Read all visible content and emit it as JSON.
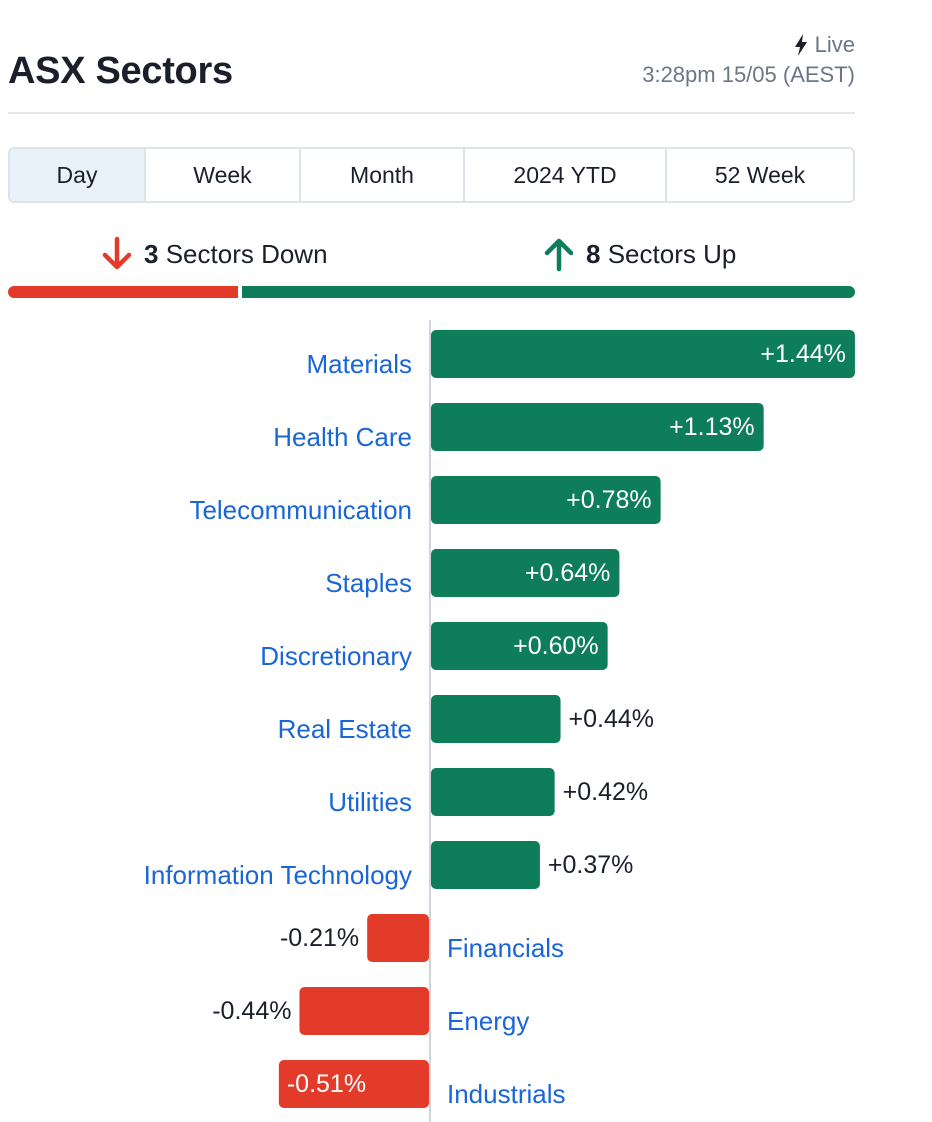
{
  "header": {
    "title": "ASX Sectors",
    "live_label": "Live",
    "timestamp": "3:28pm 15/05 (AEST)"
  },
  "tabs": [
    {
      "label": "Day",
      "active": true
    },
    {
      "label": "Week",
      "active": false
    },
    {
      "label": "Month",
      "active": false
    },
    {
      "label": "2024 YTD",
      "active": false
    },
    {
      "label": "52 Week",
      "active": false
    }
  ],
  "summary": {
    "down_count": "3",
    "down_label": "Sectors Down",
    "up_count": "8",
    "up_label": "Sectors Up"
  },
  "colors": {
    "positive": "#0d7d5a",
    "negative": "#e23b2a",
    "link": "#1a66d6",
    "axis": "#cfd5dc"
  },
  "chart_data": {
    "type": "bar",
    "orientation": "horizontal",
    "categories": [
      "Materials",
      "Health Care",
      "Telecommunication",
      "Staples",
      "Discretionary",
      "Real Estate",
      "Utilities",
      "Information Technology",
      "Financials",
      "Energy",
      "Industrials"
    ],
    "values": [
      1.44,
      1.13,
      0.78,
      0.64,
      0.6,
      0.44,
      0.42,
      0.37,
      -0.21,
      -0.44,
      -0.51
    ],
    "labels": [
      "+1.44%",
      "+1.13%",
      "+0.78%",
      "+0.64%",
      "+0.60%",
      "+0.44%",
      "+0.42%",
      "+0.37%",
      "-0.21%",
      "-0.44%",
      "-0.51%"
    ],
    "unit": "%"
  }
}
